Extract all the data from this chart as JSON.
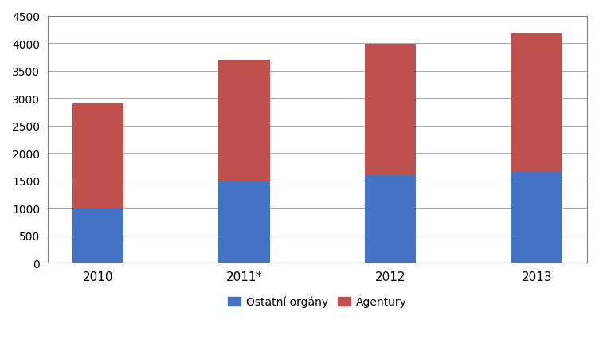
{
  "categories": [
    "2010",
    "2011*",
    "2012",
    "2013"
  ],
  "ostatni_organy": [
    1000,
    1500,
    1590,
    1650
  ],
  "agentury": [
    1900,
    2200,
    2393,
    2529
  ],
  "color_ostatni": "#4472C4",
  "color_agentury": "#C0504D",
  "legend_ostatni": "Ostatní orgány",
  "legend_agentury": "Agentury",
  "ylim": [
    0,
    4500
  ],
  "yticks": [
    0,
    500,
    1000,
    1500,
    2000,
    2500,
    3000,
    3500,
    4000,
    4500
  ],
  "background_color": "#FFFFFF",
  "bar_width": 0.35,
  "grid_color": "#AAAAAA",
  "spine_color": "#808080",
  "tick_fontsize": 10,
  "legend_fontsize": 10
}
